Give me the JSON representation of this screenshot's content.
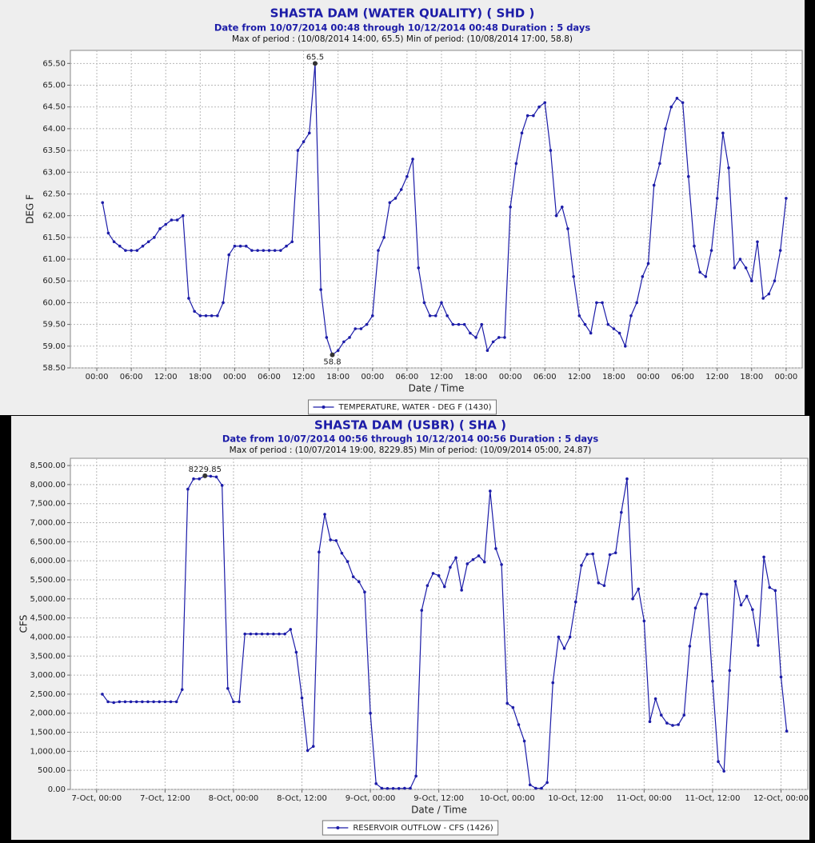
{
  "chart_data": [
    {
      "type": "line",
      "title": "SHASTA DAM (WATER QUALITY) ( SHD )",
      "subtitle": "Date from 10/07/2014 00:48 through 10/12/2014 00:48 Duration : 5 days",
      "period_note": "Max of period : (10/08/2014 14:00, 65.5) Min of period: (10/08/2014 17:00,  58.8)",
      "xlabel": "Date / Time",
      "ylabel": "DEG F",
      "x": [
        1,
        2,
        3,
        4,
        5,
        6,
        7,
        8,
        9,
        10,
        11,
        12,
        13,
        14,
        15,
        16,
        17,
        18,
        19,
        20,
        21,
        22,
        23,
        24,
        25,
        26,
        27,
        28,
        29,
        30,
        31,
        32,
        33,
        34,
        35,
        36,
        37,
        38,
        39,
        40,
        41,
        42,
        43,
        44,
        45,
        46,
        47,
        48,
        49,
        50,
        51,
        52,
        53,
        54,
        55,
        56,
        57,
        58,
        59,
        60,
        61,
        62,
        63,
        64,
        65,
        66,
        67,
        68,
        69,
        70,
        71,
        72,
        73,
        74,
        75,
        76,
        77,
        78,
        79,
        80,
        81,
        82,
        83,
        84,
        85,
        86,
        87,
        88,
        89,
        90,
        91,
        92,
        93,
        94,
        95,
        96,
        97,
        98,
        99,
        100,
        101,
        102,
        103,
        104,
        105,
        106,
        107,
        108,
        109,
        110,
        111,
        112,
        113,
        114,
        115,
        116,
        117,
        118,
        119,
        120
      ],
      "series": [
        {
          "name": "TEMPERATURE, WATER - DEG F (1430)",
          "color": "#1c1ca8",
          "values": [
            62.3,
            61.6,
            61.4,
            61.3,
            61.2,
            61.2,
            61.2,
            61.3,
            61.4,
            61.5,
            61.7,
            61.8,
            61.9,
            61.9,
            62.0,
            60.1,
            59.8,
            59.7,
            59.7,
            59.7,
            59.7,
            60.0,
            61.1,
            61.3,
            61.3,
            61.3,
            61.2,
            61.2,
            61.2,
            61.2,
            61.2,
            61.2,
            61.3,
            61.4,
            63.5,
            63.7,
            63.9,
            65.5,
            60.3,
            59.2,
            58.8,
            58.9,
            59.1,
            59.2,
            59.4,
            59.4,
            59.5,
            59.7,
            61.2,
            61.5,
            62.3,
            62.4,
            62.6,
            62.9,
            63.3,
            60.8,
            60.0,
            59.7,
            59.7,
            60.0,
            59.7,
            59.5,
            59.5,
            59.5,
            59.3,
            59.2,
            59.5,
            58.9,
            59.1,
            59.2,
            59.2,
            62.2,
            63.2,
            63.9,
            64.3,
            64.3,
            64.5,
            64.6,
            63.5,
            62.0,
            62.2,
            61.7,
            60.6,
            59.7,
            59.5,
            59.3,
            60.0,
            60.0,
            59.5,
            59.4,
            59.3,
            59.0,
            59.7,
            60.0,
            60.6,
            60.9,
            62.7,
            63.2,
            64.0,
            64.5,
            64.7,
            64.6,
            62.9,
            61.3,
            60.7,
            60.6,
            61.2,
            62.4,
            63.9,
            63.1,
            60.8,
            61.0,
            60.8,
            60.5,
            61.4,
            60.1,
            60.2,
            60.5,
            61.2,
            62.4
          ]
        }
      ],
      "xlim": [
        -4.6,
        122.8
      ],
      "ylim": [
        58.5,
        65.8
      ],
      "xticks": [
        {
          "value": 0,
          "label": "00:00"
        },
        {
          "value": 6,
          "label": "06:00"
        },
        {
          "value": 12,
          "label": "12:00"
        },
        {
          "value": 18,
          "label": "18:00"
        },
        {
          "value": 24,
          "label": "00:00"
        },
        {
          "value": 30,
          "label": "06:00"
        },
        {
          "value": 36,
          "label": "12:00"
        },
        {
          "value": 42,
          "label": "18:00"
        },
        {
          "value": 48,
          "label": "00:00"
        },
        {
          "value": 54,
          "label": "06:00"
        },
        {
          "value": 60,
          "label": "12:00"
        },
        {
          "value": 66,
          "label": "18:00"
        },
        {
          "value": 72,
          "label": "00:00"
        },
        {
          "value": 78,
          "label": "06:00"
        },
        {
          "value": 84,
          "label": "12:00"
        },
        {
          "value": 90,
          "label": "18:00"
        },
        {
          "value": 96,
          "label": "00:00"
        },
        {
          "value": 102,
          "label": "06:00"
        },
        {
          "value": 108,
          "label": "12:00"
        },
        {
          "value": 114,
          "label": "18:00"
        },
        {
          "value": 120,
          "label": "00:00"
        }
      ],
      "yticks": [
        {
          "value": 58.5,
          "label": "58.50"
        },
        {
          "value": 59,
          "label": "59.00"
        },
        {
          "value": 59.5,
          "label": "59.50"
        },
        {
          "value": 60,
          "label": "60.00"
        },
        {
          "value": 60.5,
          "label": "60.50"
        },
        {
          "value": 61,
          "label": "61.00"
        },
        {
          "value": 61.5,
          "label": "61.50"
        },
        {
          "value": 62,
          "label": "62.00"
        },
        {
          "value": 62.5,
          "label": "62.50"
        },
        {
          "value": 63,
          "label": "63.00"
        },
        {
          "value": 63.5,
          "label": "63.50"
        },
        {
          "value": 64,
          "label": "64.00"
        },
        {
          "value": 64.5,
          "label": "64.50"
        },
        {
          "value": 65,
          "label": "65.00"
        },
        {
          "value": 65.5,
          "label": "65.50"
        }
      ],
      "grid": true,
      "legend": "bottom",
      "annotations": [
        {
          "text": "65.5",
          "x": 38,
          "y": 65.5,
          "side": "above"
        },
        {
          "text": "58.8",
          "x": 41,
          "y": 58.8,
          "side": "below"
        }
      ]
    },
    {
      "type": "line",
      "title": "SHASTA DAM  (USBR) ( SHA )",
      "subtitle": "Date from 10/07/2014 00:56 through 10/12/2014 00:56 Duration : 5 days",
      "period_note": "Max of period : (10/07/2014 19:00, 8229.85)  Min of period: (10/09/2014 05:00,  24.87)",
      "xlabel": "Date / Time",
      "ylabel": "CFS",
      "x": [
        1,
        2,
        3,
        4,
        5,
        6,
        7,
        8,
        9,
        10,
        11,
        12,
        13,
        14,
        15,
        16,
        17,
        18,
        19,
        20,
        21,
        22,
        23,
        24,
        25,
        26,
        27,
        28,
        29,
        30,
        31,
        32,
        33,
        34,
        35,
        36,
        37,
        38,
        39,
        40,
        41,
        42,
        43,
        44,
        45,
        46,
        47,
        48,
        49,
        50,
        51,
        52,
        53,
        54,
        55,
        56,
        57,
        58,
        59,
        60,
        61,
        62,
        63,
        64,
        65,
        66,
        67,
        68,
        69,
        70,
        71,
        72,
        73,
        74,
        75,
        76,
        77,
        78,
        79,
        80,
        81,
        82,
        83,
        84,
        85,
        86,
        87,
        88,
        89,
        90,
        91,
        92,
        93,
        94,
        95,
        96,
        97,
        98,
        99,
        100,
        101,
        102,
        103,
        104,
        105,
        106,
        107,
        108,
        109,
        110,
        111,
        112,
        113,
        114,
        115,
        116,
        117,
        118,
        119,
        120,
        121
      ],
      "series": [
        {
          "name": "RESERVOIR OUTFLOW - CFS (1426)",
          "color": "#1c1ca8",
          "values": [
            2500,
            2300,
            2280,
            2300,
            2300,
            2300,
            2300,
            2300,
            2300,
            2300,
            2300,
            2300,
            2300,
            2300,
            2620,
            7880,
            8150,
            8150,
            8229.85,
            8220,
            8200,
            7980,
            2650,
            2300,
            2300,
            4080,
            4080,
            4080,
            4080,
            4080,
            4080,
            4080,
            4080,
            4200,
            3600,
            2400,
            1020,
            1130,
            6230,
            7220,
            6550,
            6530,
            6200,
            5980,
            5580,
            5450,
            5180,
            2000,
            150,
            30,
            25,
            25,
            24.87,
            30,
            30,
            350,
            4700,
            5350,
            5670,
            5610,
            5320,
            5830,
            6080,
            5230,
            5920,
            6030,
            6130,
            5970,
            7830,
            6320,
            5900,
            2260,
            2150,
            1700,
            1270,
            120,
            30,
            30,
            180,
            2800,
            4000,
            3700,
            4000,
            4920,
            5880,
            6170,
            6180,
            5420,
            5350,
            6160,
            6210,
            7270,
            8150,
            5000,
            5260,
            4420,
            1780,
            2380,
            1950,
            1740,
            1680,
            1700,
            1950,
            3760,
            4760,
            5130,
            5120,
            2840,
            730,
            480,
            3120,
            5460,
            4840,
            5070,
            4720,
            3780,
            6100,
            5300,
            5220,
            2950,
            1530
          ]
        }
      ],
      "xlim": [
        -4.6,
        124.7
      ],
      "ylim": [
        0,
        8690
      ],
      "xticks": [
        {
          "value": 0,
          "label": "7-Oct, 00:00"
        },
        {
          "value": 12,
          "label": "7-Oct, 12:00"
        },
        {
          "value": 24,
          "label": "8-Oct, 00:00"
        },
        {
          "value": 36,
          "label": "8-Oct, 12:00"
        },
        {
          "value": 48,
          "label": "9-Oct, 00:00"
        },
        {
          "value": 60,
          "label": "9-Oct, 12:00"
        },
        {
          "value": 72,
          "label": "10-Oct, 00:00"
        },
        {
          "value": 84,
          "label": "10-Oct, 12:00"
        },
        {
          "value": 96,
          "label": "11-Oct, 00:00"
        },
        {
          "value": 108,
          "label": "11-Oct, 12:00"
        },
        {
          "value": 120,
          "label": "12-Oct, 00:00"
        }
      ],
      "yticks": [
        {
          "value": 0,
          "label": "0.00"
        },
        {
          "value": 500,
          "label": "500.00"
        },
        {
          "value": 1000,
          "label": "1,000.00"
        },
        {
          "value": 1500,
          "label": "1,500.00"
        },
        {
          "value": 2000,
          "label": "2,000.00"
        },
        {
          "value": 2500,
          "label": "2,500.00"
        },
        {
          "value": 3000,
          "label": "3,000.00"
        },
        {
          "value": 3500,
          "label": "3,500.00"
        },
        {
          "value": 4000,
          "label": "4,000.00"
        },
        {
          "value": 4500,
          "label": "4,500.00"
        },
        {
          "value": 5000,
          "label": "5,000.00"
        },
        {
          "value": 5500,
          "label": "5,500.00"
        },
        {
          "value": 6000,
          "label": "6,000.00"
        },
        {
          "value": 6500,
          "label": "6,500.00"
        },
        {
          "value": 7000,
          "label": "7,000.00"
        },
        {
          "value": 7500,
          "label": "7,500.00"
        },
        {
          "value": 8000,
          "label": "8,000.00"
        },
        {
          "value": 8500,
          "label": "8,500.00"
        }
      ],
      "grid": true,
      "legend": "bottom",
      "annotations": [
        {
          "text": "8229.85",
          "x": 19,
          "y": 8229.85,
          "side": "above"
        }
      ]
    }
  ]
}
